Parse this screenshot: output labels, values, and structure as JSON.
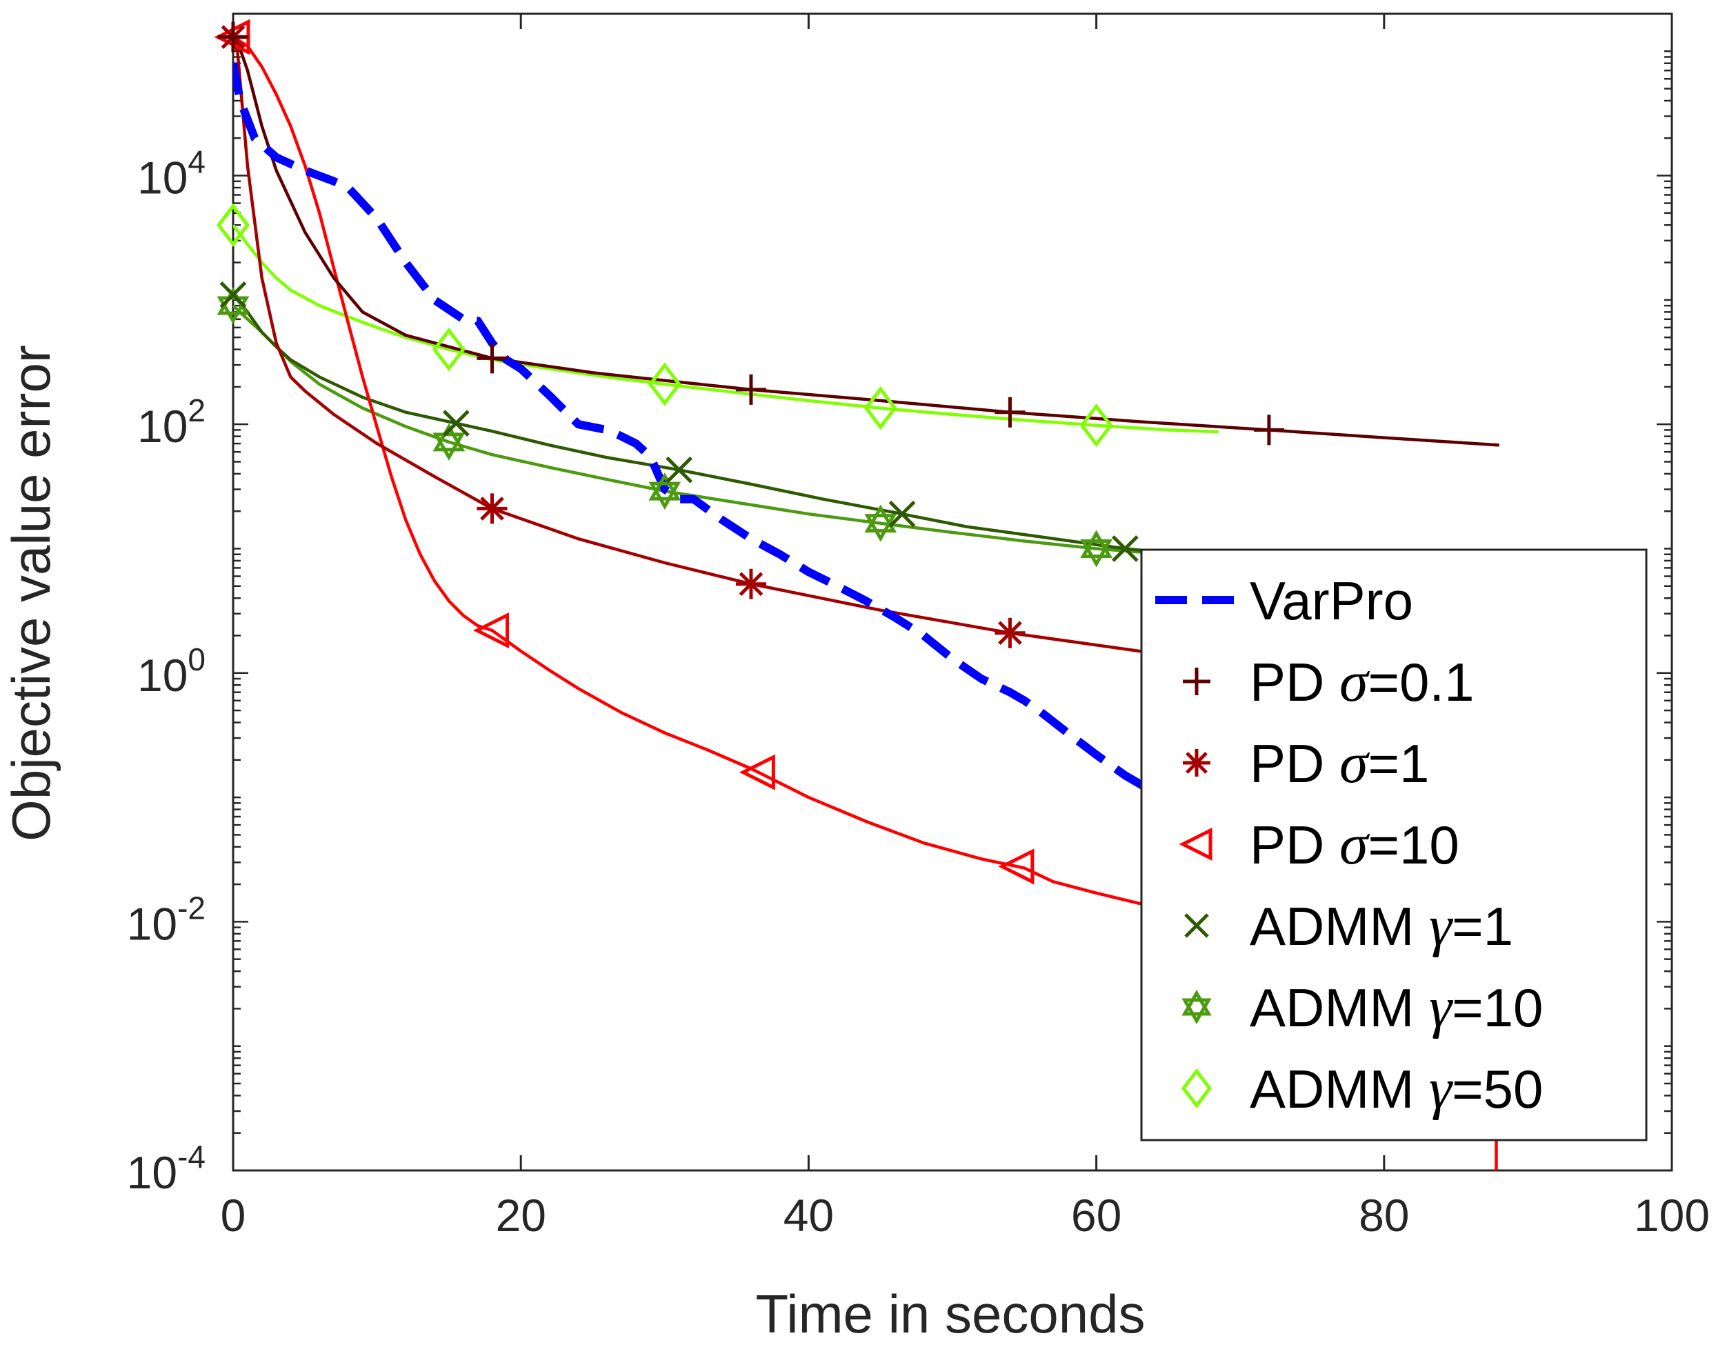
{
  "chart_data": {
    "type": "line",
    "title": "",
    "xlabel": "Time in seconds",
    "ylabel": "Objective value error",
    "xlim": [
      0,
      100
    ],
    "ylim": [
      0.0001,
      200000
    ],
    "yscale": "log",
    "grid": false,
    "legend_position": "lower-right",
    "x_ticks": [
      {
        "value": 0,
        "label": "0"
      },
      {
        "value": 20,
        "label": "20"
      },
      {
        "value": 40,
        "label": "40"
      },
      {
        "value": 60,
        "label": "60"
      },
      {
        "value": 80,
        "label": "80"
      },
      {
        "value": 100,
        "label": "100"
      }
    ],
    "y_ticks": [
      {
        "value": 0.0001,
        "base": "10",
        "exp": "-4"
      },
      {
        "value": 0.01,
        "base": "10",
        "exp": "-2"
      },
      {
        "value": 1,
        "base": "10",
        "exp": "0"
      },
      {
        "value": 100,
        "base": "10",
        "exp": "2"
      },
      {
        "value": 10000,
        "base": "10",
        "exp": "4"
      }
    ],
    "series": [
      {
        "name": "VarPro",
        "label_prefix": "VarPro",
        "label_symbol": "",
        "label_suffix": "",
        "color": "#0000ff",
        "dashed": true,
        "marker": "none",
        "x": [
          0,
          0.5,
          1.5,
          3,
          5,
          7,
          8,
          10,
          12,
          14,
          16,
          17,
          18,
          19,
          20,
          22,
          24,
          26,
          27,
          28,
          29,
          30,
          31,
          32,
          34,
          36,
          38,
          40,
          42,
          44,
          46,
          48,
          50,
          52,
          54,
          55,
          56,
          58,
          60,
          62,
          64,
          65
        ],
        "y": [
          80000,
          40000,
          20000,
          14000,
          11000,
          9000,
          8000,
          4500,
          2000,
          1000,
          700,
          680,
          450,
          330,
          280,
          170,
          100,
          90,
          80,
          70,
          55,
          30,
          25,
          25,
          17,
          12,
          9,
          6.5,
          5,
          3.8,
          2.8,
          2.0,
          1.3,
          0.9,
          0.7,
          0.6,
          0.5,
          0.33,
          0.22,
          0.15,
          0.11,
          0.1
        ],
        "marker_x": []
      },
      {
        "name": "PD σ=0.1",
        "label_prefix": "PD ",
        "label_symbol": "σ",
        "label_suffix": "=0.1",
        "color": "#5c0000",
        "dashed": false,
        "marker": "plus",
        "x": [
          0,
          0.3,
          1,
          2,
          3,
          5,
          7,
          9,
          12,
          15,
          18,
          25,
          30,
          36,
          45,
          54,
          63,
          72,
          80,
          88
        ],
        "y": [
          130000,
          120000,
          70000,
          25000,
          11000,
          3500,
          1500,
          800,
          520,
          420,
          340,
          260,
          225,
          190,
          155,
          125,
          105,
          90,
          78,
          68
        ],
        "marker_x": [
          0,
          18,
          36,
          54,
          72
        ]
      },
      {
        "name": "PD σ=1",
        "label_prefix": "PD ",
        "label_symbol": "σ",
        "label_suffix": "=1",
        "color": "#a50000",
        "dashed": false,
        "marker": "asterisk",
        "x": [
          0,
          0.3,
          1,
          2,
          3,
          4,
          5,
          7,
          10,
          14,
          18,
          24,
          30,
          36,
          45,
          54,
          63,
          72
        ],
        "y": [
          130000,
          100000,
          12000,
          1500,
          450,
          240,
          185,
          120,
          70,
          38,
          21,
          12,
          7.7,
          5.2,
          3.2,
          2.1,
          1.5,
          1.2
        ],
        "marker_x": [
          0,
          18,
          36,
          54
        ]
      },
      {
        "name": "PD σ=10",
        "label_prefix": "PD ",
        "label_symbol": "σ",
        "label_suffix": "=10",
        "color": "#ff0000",
        "dashed": false,
        "marker": "triangle-left",
        "x": [
          0,
          1,
          2,
          3,
          4,
          5,
          6,
          7,
          8,
          9,
          10,
          11,
          12,
          13,
          14,
          15,
          16,
          17,
          18,
          20,
          22,
          24,
          27,
          30,
          33,
          36,
          40,
          44,
          48,
          52,
          55,
          57,
          60,
          63,
          66
        ],
        "y": [
          130000,
          110000,
          75000,
          45000,
          25000,
          12000,
          5000,
          1800,
          650,
          240,
          95,
          38,
          17,
          9,
          5.5,
          3.8,
          2.9,
          2.4,
          2.2,
          1.5,
          1.05,
          0.75,
          0.48,
          0.33,
          0.24,
          0.17,
          0.1,
          0.064,
          0.043,
          0.032,
          0.027,
          0.021,
          0.017,
          0.014,
          0.012
        ],
        "marker_x": [
          0,
          18,
          36.5,
          54.5
        ]
      },
      {
        "name": "ADMM γ=1",
        "label_prefix": "ADMM ",
        "label_symbol": "γ",
        "label_suffix": "=1",
        "color": "#2d5a00",
        "dashed": false,
        "marker": "x",
        "x": [
          0,
          1,
          2,
          3,
          4,
          6,
          9,
          12,
          15,
          18,
          22,
          26,
          31,
          36,
          41,
          46,
          51,
          56,
          62,
          64
        ],
        "y": [
          1100,
          800,
          550,
          420,
          330,
          240,
          165,
          125,
          105,
          88,
          68,
          54,
          43,
          33,
          25,
          19.5,
          15,
          12.5,
          10,
          9.5
        ],
        "marker_x": [
          0,
          15.5,
          31,
          46.5,
          62
        ]
      },
      {
        "name": "ADMM γ=10",
        "label_prefix": "ADMM ",
        "label_symbol": "γ",
        "label_suffix": "=10",
        "color": "#4c9a10",
        "dashed": false,
        "marker": "hexagram",
        "x": [
          0,
          1,
          2,
          3,
          4,
          6,
          9,
          12,
          15,
          18,
          22,
          26,
          30,
          35,
          40,
          45,
          50,
          55,
          60,
          64
        ],
        "y": [
          900,
          700,
          550,
          420,
          320,
          210,
          135,
          96,
          72,
          57,
          45,
          36,
          29,
          23.5,
          19,
          16,
          13.5,
          11.5,
          10,
          9.2
        ],
        "marker_x": [
          0,
          15,
          30,
          45,
          60
        ]
      },
      {
        "name": "ADMM γ=50",
        "label_prefix": "ADMM ",
        "label_symbol": "γ",
        "label_suffix": "=50",
        "color": "#7fff00",
        "dashed": false,
        "marker": "diamond",
        "x": [
          0,
          1,
          2,
          3,
          4,
          6,
          8,
          10,
          12,
          15,
          18,
          22,
          26,
          30,
          35,
          40,
          45,
          50,
          55,
          60,
          65,
          68.5
        ],
        "y": [
          4000,
          2800,
          2000,
          1500,
          1200,
          900,
          730,
          600,
          500,
          400,
          330,
          280,
          240,
          210,
          180,
          155,
          135,
          120,
          108,
          98,
          90,
          87
        ],
        "marker_x": [
          0,
          15,
          30,
          45,
          60
        ]
      }
    ],
    "extra_segment": {
      "color": "#ff0000",
      "x": 87.8,
      "y_from": 0.00019,
      "y_to": 0.0001
    }
  }
}
